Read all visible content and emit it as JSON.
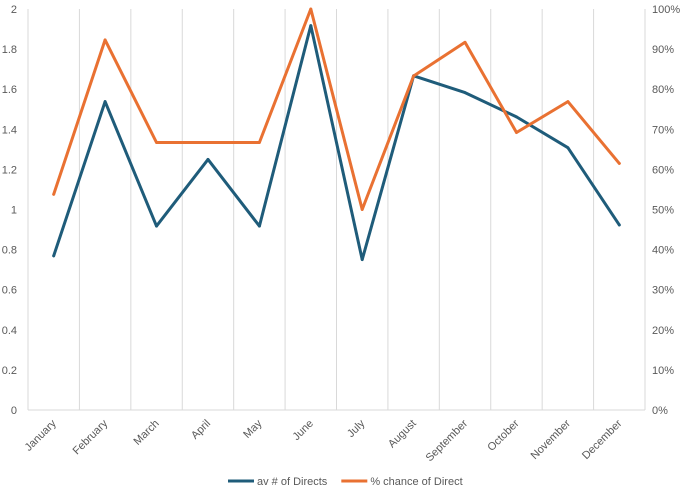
{
  "chart_data": {
    "type": "line",
    "categories": [
      "January",
      "February",
      "March",
      "April",
      "May",
      "June",
      "July",
      "August",
      "September",
      "October",
      "November",
      "December"
    ],
    "series": [
      {
        "name": "av # of Directs",
        "axis": "left",
        "color": "#1f5c7a",
        "values": [
          0.769,
          1.538,
          0.917,
          1.25,
          0.917,
          1.917,
          0.75,
          1.667,
          1.583,
          1.462,
          1.308,
          0.923
        ]
      },
      {
        "name": "% chance of Direct",
        "axis": "right",
        "color": "#e97132",
        "values": [
          0.538,
          0.923,
          0.667,
          0.667,
          0.667,
          1.0,
          0.5,
          0.833,
          0.917,
          0.692,
          0.769,
          0.615
        ]
      }
    ],
    "left_axis": {
      "ylim": [
        0,
        2
      ],
      "ticks": [
        "0",
        "0.2",
        "0.4",
        "0.6",
        "0.8",
        "1",
        "1.2",
        "1.4",
        "1.6",
        "1.8",
        "2"
      ]
    },
    "right_axis": {
      "ylim": [
        0,
        1
      ],
      "ticks": [
        "0%",
        "10%",
        "20%",
        "30%",
        "40%",
        "50%",
        "60%",
        "70%",
        "80%",
        "90%",
        "100%"
      ]
    },
    "grid": {
      "vertical": true,
      "horizontal": false
    },
    "legend": {
      "position": "bottom"
    }
  }
}
